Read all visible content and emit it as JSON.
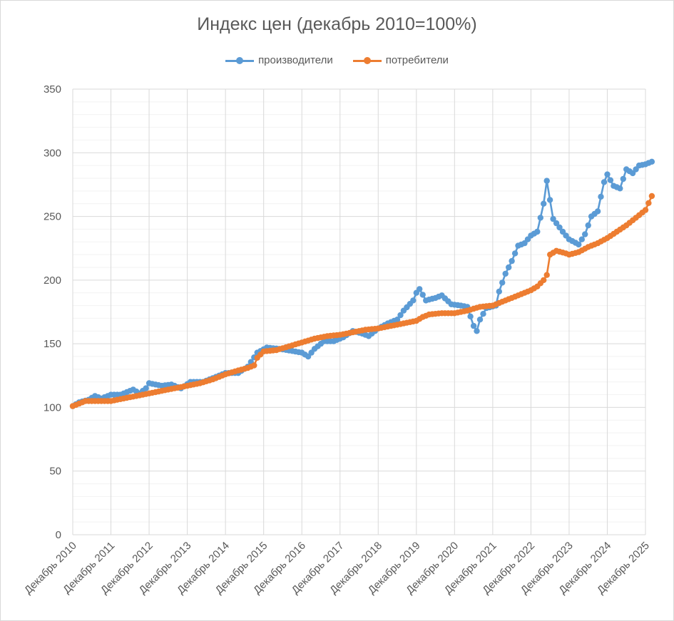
{
  "chart_data": {
    "type": "line",
    "title": "Индекс цен (декабрь 2010=100%)",
    "xlabel": "",
    "ylabel": "",
    "ylim": [
      0,
      350
    ],
    "yticks": [
      0,
      50,
      100,
      150,
      200,
      250,
      300,
      350
    ],
    "xlim": [
      2010.917,
      2025.917
    ],
    "x_tick_labels": [
      "Декабрь 2010",
      "Декабрь 2011",
      "Декабрь 2012",
      "Декабрь 2013",
      "Декабрь 2014",
      "Декабрь 2015",
      "Декабрь 2016",
      "Декабрь 2017",
      "Декабрь 2018",
      "Декабрь 2019",
      "Декабрь 2020",
      "Декабрь 2021",
      "Декабрь 2022",
      "Декабрь 2023",
      "Декабрь 2024",
      "Декабрь 2025"
    ],
    "grid": true,
    "legend_position": "top",
    "series": [
      {
        "name": "производители",
        "color": "#5b9bd5",
        "points": [
          [
            2010.917,
            101
          ],
          [
            2011.083,
            104
          ],
          [
            2011.333,
            106
          ],
          [
            2011.5,
            109
          ],
          [
            2011.667,
            107
          ],
          [
            2011.917,
            110
          ],
          [
            2012.167,
            110
          ],
          [
            2012.5,
            114
          ],
          [
            2012.667,
            111
          ],
          [
            2012.833,
            115
          ],
          [
            2012.917,
            119
          ],
          [
            2013.25,
            117
          ],
          [
            2013.5,
            118
          ],
          [
            2013.75,
            115
          ],
          [
            2014.0,
            120
          ],
          [
            2014.333,
            120
          ],
          [
            2014.667,
            124
          ],
          [
            2014.917,
            127
          ],
          [
            2015.25,
            127
          ],
          [
            2015.5,
            132
          ],
          [
            2015.75,
            143
          ],
          [
            2016.0,
            147
          ],
          [
            2016.333,
            146
          ],
          [
            2016.917,
            143
          ],
          [
            2017.083,
            140
          ],
          [
            2017.25,
            146
          ],
          [
            2017.5,
            152
          ],
          [
            2017.75,
            152
          ],
          [
            2018.0,
            155
          ],
          [
            2018.25,
            160
          ],
          [
            2018.5,
            158
          ],
          [
            2018.667,
            156
          ],
          [
            2018.917,
            162
          ],
          [
            2019.167,
            166
          ],
          [
            2019.417,
            169
          ],
          [
            2019.583,
            176
          ],
          [
            2019.833,
            184
          ],
          [
            2019.917,
            190
          ],
          [
            2020.0,
            193
          ],
          [
            2020.167,
            184
          ],
          [
            2020.417,
            186
          ],
          [
            2020.583,
            188
          ],
          [
            2020.833,
            181
          ],
          [
            2021.083,
            180
          ],
          [
            2021.25,
            179
          ],
          [
            2021.417,
            164
          ],
          [
            2021.5,
            160
          ],
          [
            2021.583,
            169
          ],
          [
            2021.75,
            178
          ],
          [
            2022.0,
            180
          ],
          [
            2022.083,
            191
          ],
          [
            2022.25,
            205
          ],
          [
            2022.417,
            215
          ],
          [
            2022.583,
            227
          ],
          [
            2022.75,
            229
          ],
          [
            2022.917,
            235
          ],
          [
            2023.083,
            238
          ],
          [
            2023.25,
            260
          ],
          [
            2023.333,
            278
          ],
          [
            2023.5,
            248
          ],
          [
            2023.75,
            238
          ],
          [
            2023.917,
            232
          ],
          [
            2024.167,
            228
          ],
          [
            2024.333,
            236
          ],
          [
            2024.5,
            250
          ],
          [
            2024.667,
            254
          ],
          [
            2024.833,
            277
          ],
          [
            2024.917,
            283
          ],
          [
            2025.083,
            274
          ],
          [
            2025.25,
            272
          ],
          [
            2025.417,
            287
          ],
          [
            2025.583,
            284
          ],
          [
            2025.75,
            290
          ],
          [
            2025.917,
            291
          ],
          [
            2026.083,
            293
          ]
        ]
      },
      {
        "name": "потребители",
        "color": "#ed7d31",
        "points": [
          [
            2010.917,
            101
          ],
          [
            2011.25,
            105
          ],
          [
            2011.583,
            105
          ],
          [
            2011.917,
            105
          ],
          [
            2012.25,
            107
          ],
          [
            2012.583,
            109
          ],
          [
            2012.917,
            111
          ],
          [
            2013.25,
            113
          ],
          [
            2013.583,
            115
          ],
          [
            2013.917,
            117
          ],
          [
            2014.25,
            119
          ],
          [
            2014.583,
            122
          ],
          [
            2014.917,
            126
          ],
          [
            2015.25,
            129
          ],
          [
            2015.5,
            131
          ],
          [
            2015.667,
            133
          ],
          [
            2015.75,
            139
          ],
          [
            2015.917,
            144
          ],
          [
            2016.25,
            145
          ],
          [
            2016.583,
            148
          ],
          [
            2016.917,
            151
          ],
          [
            2017.25,
            154
          ],
          [
            2017.583,
            156
          ],
          [
            2017.917,
            157
          ],
          [
            2018.25,
            159
          ],
          [
            2018.583,
            161
          ],
          [
            2018.917,
            162
          ],
          [
            2019.25,
            164
          ],
          [
            2019.583,
            166
          ],
          [
            2019.917,
            168
          ],
          [
            2020.083,
            171
          ],
          [
            2020.25,
            173
          ],
          [
            2020.583,
            174
          ],
          [
            2020.917,
            174
          ],
          [
            2021.25,
            176
          ],
          [
            2021.583,
            179
          ],
          [
            2021.917,
            180
          ],
          [
            2022.25,
            184
          ],
          [
            2022.583,
            188
          ],
          [
            2022.917,
            192
          ],
          [
            2023.083,
            195
          ],
          [
            2023.25,
            200
          ],
          [
            2023.333,
            204
          ],
          [
            2023.417,
            220
          ],
          [
            2023.583,
            223
          ],
          [
            2023.833,
            221
          ],
          [
            2023.917,
            220
          ],
          [
            2024.167,
            222
          ],
          [
            2024.417,
            226
          ],
          [
            2024.667,
            229
          ],
          [
            2024.917,
            233
          ],
          [
            2025.167,
            238
          ],
          [
            2025.417,
            243
          ],
          [
            2025.667,
            249
          ],
          [
            2025.917,
            255
          ],
          [
            2026.083,
            266
          ]
        ]
      }
    ]
  }
}
